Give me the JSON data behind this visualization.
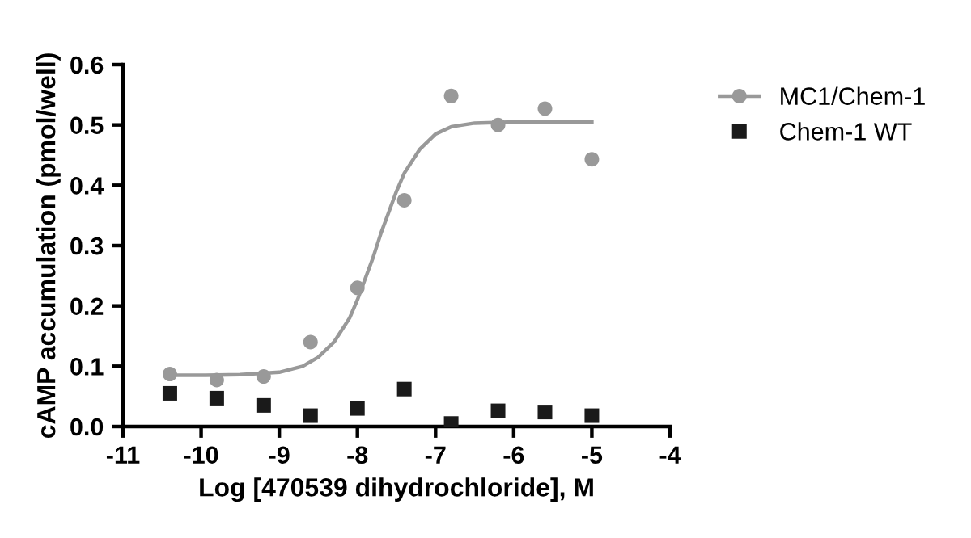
{
  "chart_data": {
    "type": "scatter",
    "xlabel": "Log [470539 dihydrochloride], M",
    "ylabel": "cAMP accumulation (pmol/well)",
    "xlim": [
      -11,
      -4
    ],
    "xticks": [
      -11,
      -10,
      -9,
      -8,
      -7,
      -6,
      -5,
      -4
    ],
    "ylim": [
      0,
      0.6
    ],
    "yticks": [
      {
        "value": 0,
        "label": "0.0"
      },
      0.1,
      0.2,
      0.3,
      0.4,
      0.5,
      0.6
    ],
    "grid": false,
    "legend": "top right",
    "series": [
      {
        "name": "MC1/Chem-1",
        "marker": "circle",
        "color": "#999999",
        "x": [
          -10.4,
          -9.8,
          -9.2,
          -8.6,
          -8.0,
          -7.4,
          -6.8,
          -6.2,
          -5.6,
          -5.0
        ],
        "values": [
          0.087,
          0.077,
          0.083,
          0.14,
          0.23,
          0.375,
          0.548,
          0.5,
          0.527,
          0.443
        ]
      },
      {
        "type": "line",
        "marker": "none",
        "color": "#999999",
        "x": [
          -10.4,
          -10.0,
          -9.5,
          -9.0,
          -8.7,
          -8.5,
          -8.3,
          -8.1,
          -8.0,
          -7.9,
          -7.8,
          -7.7,
          -7.6,
          -7.5,
          -7.4,
          -7.2,
          -7.0,
          -6.8,
          -6.5,
          -6.0,
          -5.0
        ],
        "values": [
          0.085,
          0.085,
          0.086,
          0.09,
          0.1,
          0.115,
          0.14,
          0.18,
          0.21,
          0.245,
          0.28,
          0.32,
          0.355,
          0.39,
          0.42,
          0.46,
          0.485,
          0.497,
          0.503,
          0.505,
          0.505
        ]
      },
      {
        "name": "Chem-1 WT",
        "marker": "square",
        "color": "#1a1a1a",
        "x": [
          -10.4,
          -9.8,
          -9.2,
          -8.6,
          -8.0,
          -7.4,
          -6.8,
          -6.2,
          -5.6,
          -5.0
        ],
        "values": [
          0.055,
          0.047,
          0.035,
          0.018,
          0.03,
          0.062,
          0.005,
          0.026,
          0.024,
          0.018
        ]
      }
    ]
  }
}
